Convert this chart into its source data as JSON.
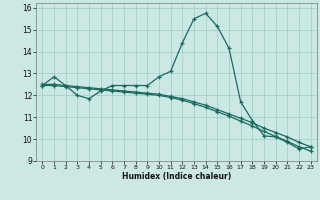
{
  "xlabel": "Humidex (Indice chaleur)",
  "bg_color": "#cce8e4",
  "grid_color": "#9dccc6",
  "line_color": "#1a6b5e",
  "xlim": [
    -0.5,
    23.5
  ],
  "ylim": [
    9,
    16.2
  ],
  "xticks": [
    0,
    1,
    2,
    3,
    4,
    5,
    6,
    7,
    8,
    9,
    10,
    11,
    12,
    13,
    14,
    15,
    16,
    17,
    18,
    19,
    20,
    21,
    22,
    23
  ],
  "yticks": [
    9,
    10,
    11,
    12,
    13,
    14,
    15,
    16
  ],
  "line1_x": [
    0,
    1,
    2,
    3,
    4,
    5,
    6,
    7,
    8,
    9,
    10,
    11,
    12,
    13,
    14,
    15,
    16,
    17,
    18,
    19,
    20,
    21,
    22,
    23
  ],
  "line1_y": [
    12.45,
    12.85,
    12.45,
    12.0,
    11.85,
    12.2,
    12.45,
    12.45,
    12.45,
    12.45,
    12.85,
    13.1,
    14.4,
    15.5,
    15.75,
    15.15,
    14.15,
    11.7,
    10.85,
    10.15,
    10.1,
    9.85,
    9.55,
    9.65
  ],
  "line2_x": [
    0,
    1,
    2,
    3,
    4,
    5,
    6,
    7,
    8,
    9,
    10,
    11,
    12,
    13,
    14,
    15,
    16,
    17,
    18,
    19,
    20,
    21,
    22,
    23
  ],
  "line2_y": [
    12.5,
    12.5,
    12.45,
    12.4,
    12.35,
    12.3,
    12.25,
    12.2,
    12.15,
    12.1,
    12.05,
    11.95,
    11.85,
    11.7,
    11.55,
    11.35,
    11.15,
    10.95,
    10.75,
    10.5,
    10.3,
    10.1,
    9.85,
    9.65
  ],
  "line3_x": [
    0,
    1,
    2,
    3,
    4,
    5,
    6,
    7,
    8,
    9,
    10,
    11,
    12,
    13,
    14,
    15,
    16,
    17,
    18,
    19,
    20,
    21,
    22,
    23
  ],
  "line3_y": [
    12.45,
    12.45,
    12.4,
    12.35,
    12.3,
    12.25,
    12.2,
    12.15,
    12.1,
    12.05,
    12.0,
    11.9,
    11.78,
    11.62,
    11.45,
    11.25,
    11.05,
    10.82,
    10.6,
    10.35,
    10.12,
    9.9,
    9.65,
    9.45
  ]
}
